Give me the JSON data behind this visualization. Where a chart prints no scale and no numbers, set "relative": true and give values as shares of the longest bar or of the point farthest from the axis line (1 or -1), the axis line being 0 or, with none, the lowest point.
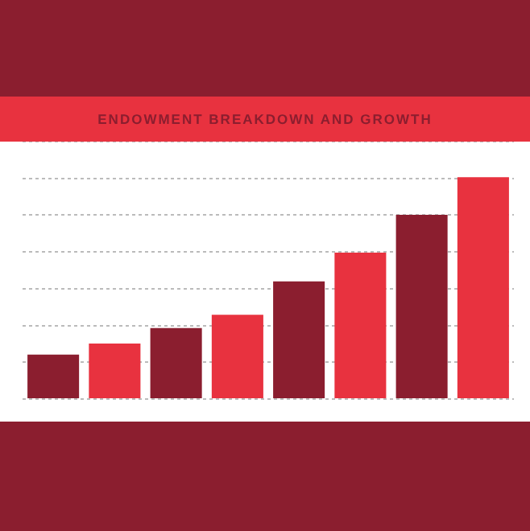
{
  "chart_data": {
    "type": "bar",
    "title": "ENDOWMENT BREAKDOWN AND GROWTH",
    "relative": true,
    "categories": [
      null,
      null,
      null,
      null,
      null,
      null,
      null,
      null
    ],
    "values": [
      0.2,
      0.25,
      0.32,
      0.38,
      0.53,
      0.66,
      0.83,
      1
    ],
    "colors": [
      "#8b1e2f",
      "#e8323f",
      "#8b1e2f",
      "#e8323f",
      "#8b1e2f",
      "#e8323f",
      "#8b1e2f",
      "#e8323f"
    ],
    "grid": true,
    "legend": false
  }
}
